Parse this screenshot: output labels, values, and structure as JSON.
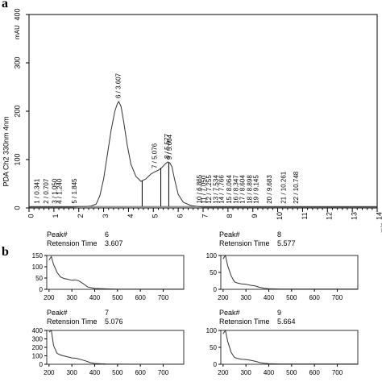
{
  "panel_a_label": "a",
  "panel_b_label": "b",
  "chart_data": [
    {
      "type": "line",
      "ylabel": "PDA Ch2 330nm 4nm",
      "yunit": "mAU",
      "xunit": "min",
      "xlim": [
        0,
        14
      ],
      "ylim": [
        0,
        400
      ],
      "xticks": [
        0,
        1,
        2,
        3,
        4,
        5,
        6,
        7,
        8,
        9,
        10,
        11,
        12,
        13,
        14
      ],
      "yticks": [
        0,
        100,
        200,
        300,
        400
      ],
      "series": [
        {
          "x": [
            0.0,
            0.3,
            0.7,
            1.0,
            1.5,
            1.8,
            2.0,
            2.3,
            2.5,
            2.7,
            2.85,
            3.0,
            3.15,
            3.3,
            3.45,
            3.55,
            3.607,
            3.7,
            3.8,
            3.95,
            4.1,
            4.3,
            4.5,
            4.7,
            4.9,
            5.076,
            5.2,
            5.35,
            5.5,
            5.577,
            5.664,
            5.75,
            5.85,
            6.0,
            6.2,
            6.5,
            6.8,
            7.0,
            8.0,
            9.0,
            10.0,
            11.0,
            12.0,
            13.0,
            14.0
          ],
          "y": [
            2,
            2,
            2,
            2,
            2,
            2,
            3,
            3,
            4,
            8,
            25,
            60,
            110,
            160,
            200,
            215,
            220,
            210,
            180,
            130,
            90,
            65,
            55,
            60,
            70,
            75,
            78,
            84,
            92,
            95,
            93,
            85,
            60,
            28,
            12,
            5,
            3,
            2,
            2,
            2,
            2,
            2,
            2,
            2,
            2
          ]
        }
      ],
      "peak_labels": [
        {
          "text": "1 / 0.341",
          "x": 0.341
        },
        {
          "text": "2 / 0.707",
          "x": 0.707
        },
        {
          "text": "3 / 1.050",
          "x": 1.05
        },
        {
          "text": "4 / 1.240",
          "x": 1.24
        },
        {
          "text": "5 / 1.845",
          "x": 1.845
        },
        {
          "text": "6 / 3.607",
          "x": 3.607
        },
        {
          "text": "7 / 5.076",
          "x": 5.076
        },
        {
          "text": "8 / 5.577",
          "x": 5.577
        },
        {
          "text": "9 / 5.664",
          "x": 5.664
        },
        {
          "text": "10 / 6.865",
          "x": 6.865
        },
        {
          "text": "11 / 7.050",
          "x": 7.05
        },
        {
          "text": "12 / 7.255",
          "x": 7.255
        },
        {
          "text": "13 / 7.534",
          "x": 7.534
        },
        {
          "text": "14 / 7.766",
          "x": 7.766
        },
        {
          "text": "15 / 8.064",
          "x": 8.064
        },
        {
          "text": "16 / 8.347",
          "x": 8.347
        },
        {
          "text": "17 / 8.604",
          "x": 8.604
        },
        {
          "text": "18 / 8.898",
          "x": 8.898
        },
        {
          "text": "19 / 9.145",
          "x": 9.145
        },
        {
          "text": "20 / 9.683",
          "x": 9.683
        },
        {
          "text": "21 / 10.261",
          "x": 10.261
        },
        {
          "text": "22 / 10.748",
          "x": 10.748
        }
      ],
      "peak_markers_x": [
        4.55,
        5.3,
        5.62
      ]
    },
    {
      "type": "line",
      "peak_label": "Peak#",
      "peak_value": "6",
      "rt_label": "Retension Time",
      "rt_value": "3.607",
      "xlim": [
        190,
        790
      ],
      "ylim": [
        0,
        150
      ],
      "xticks": [
        200,
        300,
        400,
        500,
        600,
        700
      ],
      "yticks": [
        0,
        50,
        100,
        150
      ],
      "series": [
        {
          "x": [
            200,
            210,
            220,
            235,
            250,
            265,
            280,
            300,
            315,
            330,
            350,
            370,
            400,
            450,
            500,
            600,
            700,
            790
          ],
          "y": [
            130,
            145,
            110,
            75,
            55,
            48,
            45,
            40,
            42,
            38,
            25,
            10,
            4,
            2,
            1,
            1,
            1,
            1
          ]
        }
      ]
    },
    {
      "type": "line",
      "peak_label": "Peak#",
      "peak_value": "8",
      "rt_label": "Retension Time",
      "rt_value": "5.577",
      "xlim": [
        190,
        790
      ],
      "ylim": [
        0,
        100
      ],
      "xticks": [
        200,
        300,
        400,
        500,
        600,
        700
      ],
      "yticks": [
        0,
        50,
        100
      ],
      "series": [
        {
          "x": [
            200,
            210,
            220,
            235,
            250,
            265,
            280,
            300,
            320,
            340,
            360,
            380,
            400,
            450,
            500,
            600,
            700,
            790
          ],
          "y": [
            90,
            100,
            70,
            40,
            22,
            18,
            16,
            15,
            12,
            10,
            6,
            3,
            2,
            1,
            1,
            1,
            1,
            1
          ]
        }
      ]
    },
    {
      "type": "line",
      "peak_label": "Peak#",
      "peak_value": "7",
      "rt_label": "Retension Time",
      "rt_value": "5.076",
      "xlim": [
        190,
        790
      ],
      "ylim": [
        0,
        400
      ],
      "xticks": [
        200,
        300,
        400,
        500,
        600,
        700
      ],
      "yticks": [
        0,
        100,
        200,
        300,
        400
      ],
      "series": [
        {
          "x": [
            200,
            210,
            220,
            235,
            250,
            270,
            300,
            320,
            340,
            360,
            380,
            400,
            450,
            500,
            600,
            700,
            790
          ],
          "y": [
            380,
            400,
            220,
            130,
            110,
            95,
            75,
            70,
            55,
            40,
            20,
            10,
            4,
            2,
            1,
            1,
            1
          ]
        }
      ]
    },
    {
      "type": "line",
      "peak_label": "Peak#",
      "peak_value": "9",
      "rt_label": "Retension Time",
      "rt_value": "5.664",
      "xlim": [
        190,
        790
      ],
      "ylim": [
        0,
        100
      ],
      "xticks": [
        200,
        300,
        400,
        500,
        600,
        700
      ],
      "yticks": [
        0,
        50,
        100
      ],
      "series": [
        {
          "x": [
            200,
            210,
            220,
            235,
            250,
            265,
            280,
            300,
            320,
            340,
            360,
            380,
            400,
            450,
            500,
            600,
            700,
            790
          ],
          "y": [
            90,
            100,
            68,
            35,
            20,
            17,
            15,
            14,
            12,
            9,
            5,
            3,
            2,
            1,
            1,
            1,
            1,
            1
          ]
        }
      ]
    }
  ]
}
